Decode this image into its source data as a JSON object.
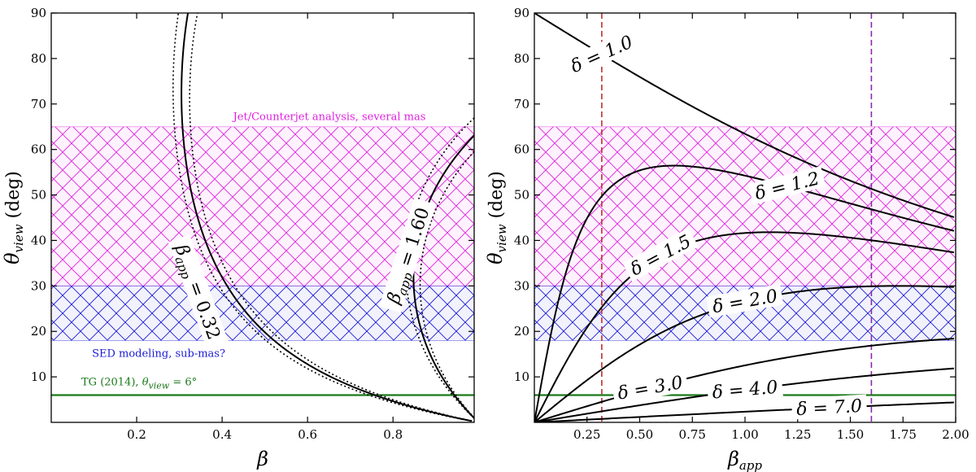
{
  "chart_data": [
    {
      "type": "line",
      "xlabel": "β",
      "ylabel_main": "θ",
      "ylabel_sub": "view",
      "ylabel_unit": "(deg)",
      "xlim": [
        0.0,
        0.99
      ],
      "ylim": [
        0,
        90
      ],
      "xticks": [
        0.2,
        0.4,
        0.6,
        0.8
      ],
      "xtick_labels": [
        "0.2",
        "0.4",
        "0.6",
        "0.8"
      ],
      "yticks": [
        10,
        20,
        30,
        40,
        50,
        60,
        70,
        80,
        90
      ],
      "ytick_labels": [
        "10",
        "20",
        "30",
        "40",
        "50",
        "60",
        "70",
        "80",
        "90"
      ],
      "bands": [
        {
          "name": "Jet/Counterjet analysis, several mas",
          "ymin": 30,
          "ymax": 65,
          "color": "#e020e0"
        },
        {
          "name": "SED modeling, sub-mas?",
          "ymin": 18,
          "ymax": 30,
          "color": "#1a1ad8"
        }
      ],
      "hline": {
        "y": 6,
        "color": "#1a7a1a",
        "label_a": "TG (2014), ",
        "label_b": "θ",
        "label_c": "view",
        "label_d": " = 6°"
      },
      "contours": [
        {
          "name": "β_app = 0.32",
          "label_a": "β",
          "label_b": "app",
          "label_c": " = 0.32",
          "beta_app": 0.32
        },
        {
          "name": "β_app = 1.60",
          "label_a": "β",
          "label_b": "app",
          "label_c": " = 1.60",
          "beta_app": 1.6
        }
      ]
    },
    {
      "type": "line",
      "xlabel_main": "β",
      "xlabel_sub": "app",
      "ylabel_main": "θ",
      "ylabel_sub": "view",
      "ylabel_unit": "(deg)",
      "xlim": [
        0.0,
        2.0
      ],
      "ylim": [
        0,
        90
      ],
      "xticks": [
        0.25,
        0.5,
        0.75,
        1.0,
        1.25,
        1.5,
        1.75,
        2.0
      ],
      "xtick_labels": [
        "0.25",
        "0.50",
        "0.75",
        "1.00",
        "1.25",
        "1.50",
        "1.75",
        "2.00"
      ],
      "yticks": [
        10,
        20,
        30,
        40,
        50,
        60,
        70,
        80,
        90
      ],
      "ytick_labels": [
        "10",
        "20",
        "30",
        "40",
        "50",
        "60",
        "70",
        "80",
        "90"
      ],
      "bands": [
        {
          "ymin": 30,
          "ymax": 65,
          "color": "#e020e0"
        },
        {
          "ymin": 18,
          "ymax": 30,
          "color": "#1a1ad8"
        }
      ],
      "hline": {
        "y": 6,
        "color": "#1a7a1a"
      },
      "vlines": [
        {
          "x": 0.32,
          "color": "#c03030"
        },
        {
          "x": 1.6,
          "color": "#8a2aa8"
        }
      ],
      "series": [
        {
          "name": "δ = 1.0",
          "delta": 1.0,
          "label": "δ = 1.0"
        },
        {
          "name": "δ = 1.2",
          "delta": 1.2,
          "label": "δ = 1.2"
        },
        {
          "name": "δ = 1.5",
          "delta": 1.5,
          "label": "δ = 1.5"
        },
        {
          "name": "δ = 2.0",
          "delta": 2.0,
          "label": "δ = 2.0"
        },
        {
          "name": "δ = 3.0",
          "delta": 3.0,
          "label": "δ = 3.0"
        },
        {
          "name": "δ = 4.0",
          "delta": 4.0,
          "label": "δ = 4.0"
        },
        {
          "name": "δ = 7.0",
          "delta": 7.0,
          "label": "δ = 7.0"
        }
      ]
    }
  ]
}
